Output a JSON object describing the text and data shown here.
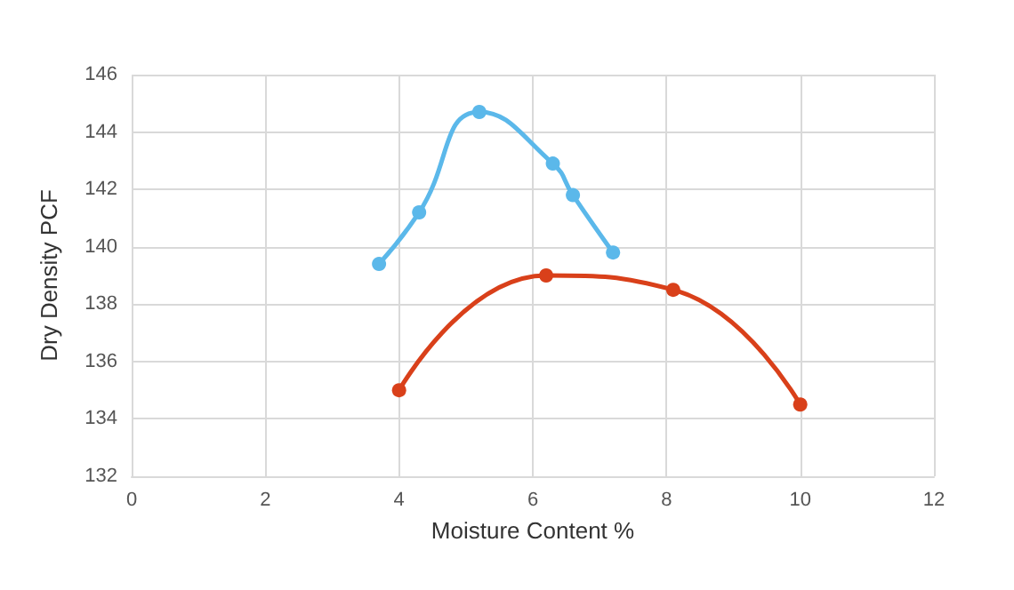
{
  "chart_data": {
    "type": "line",
    "xlabel": "Moisture Content %",
    "ylabel": "Dry Density PCF",
    "xlim": [
      0,
      12
    ],
    "xticks": [
      0,
      2,
      4,
      6,
      8,
      10,
      12
    ],
    "ylim": [
      132,
      146
    ],
    "yticks": [
      132,
      134,
      136,
      138,
      140,
      142,
      144,
      146
    ],
    "grid": true,
    "marker": "circle",
    "line_style": "solid",
    "series": [
      {
        "color": "#5bb8ea",
        "x": [
          3.7,
          4.3,
          5.2,
          6.3,
          6.6,
          7.2
        ],
        "values": [
          139.4,
          141.2,
          144.7,
          142.9,
          141.8,
          139.8
        ]
      },
      {
        "color": "#d9401a",
        "x": [
          4.0,
          6.2,
          8.1,
          10.0
        ],
        "values": [
          135.0,
          139.0,
          138.5,
          134.5
        ]
      }
    ]
  }
}
